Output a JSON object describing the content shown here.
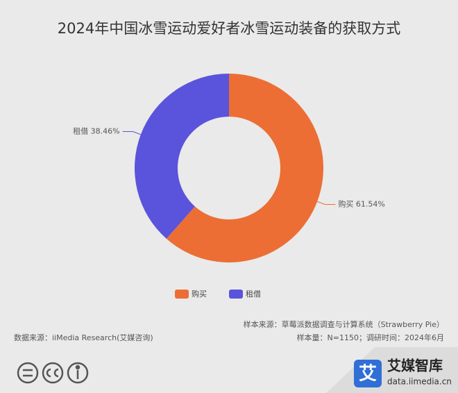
{
  "chart_data": {
    "type": "donut",
    "title": "2024年中国冰雪运动爱好者冰雪运动装备的获取方式",
    "categories": [
      "购买",
      "租借"
    ],
    "values": [
      61.54,
      38.46
    ],
    "value_labels": [
      "61.54%",
      "38.46%"
    ],
    "colors": [
      "#ec6e35",
      "#5a53db"
    ],
    "legend": "bottom"
  },
  "footer": {
    "source": "数据来源：iiMedia Research(艾媒咨询)",
    "sample_source": "样本来源：草莓派数据调查与计算系统（Strawberry Pie）",
    "sample_info": "样本量：N=1150；调研时间：2024年6月"
  },
  "logo": {
    "icon": "艾",
    "name": "艾媒智库",
    "url": "data.iimedia.cn"
  }
}
